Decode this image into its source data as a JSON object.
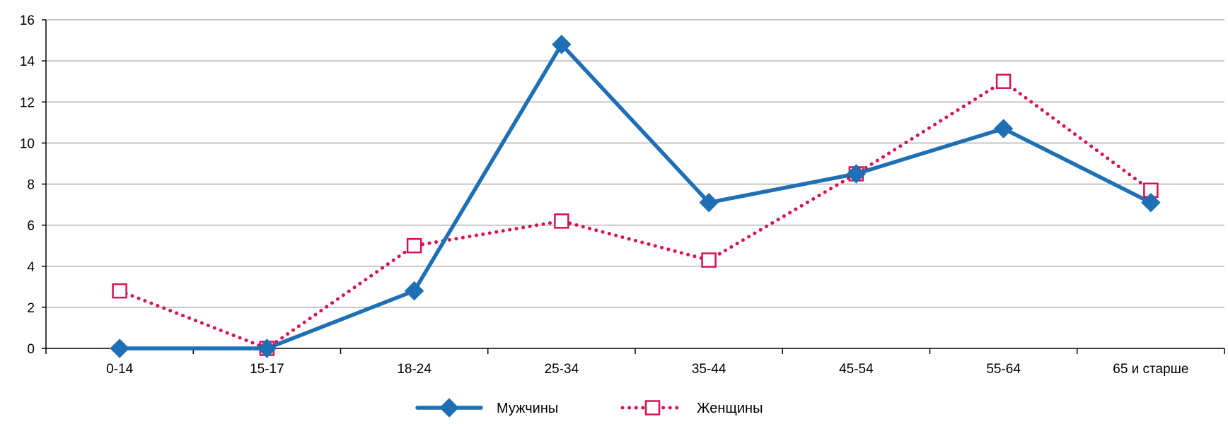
{
  "chart_data": {
    "type": "line",
    "categories": [
      "0-14",
      "15-17",
      "18-24",
      "25-34",
      "35-44",
      "45-54",
      "55-64",
      "65 и старше"
    ],
    "ylim": [
      0,
      16
    ],
    "yticks": [
      0,
      2,
      4,
      6,
      8,
      10,
      12,
      14,
      16
    ],
    "grid": true,
    "legend_position": "bottom",
    "series": [
      {
        "name": "Мужчины",
        "values": [
          0,
          0,
          2.8,
          14.8,
          7.1,
          8.5,
          10.7,
          7.1
        ],
        "color": "#1f6fb4",
        "line_style": "solid",
        "marker": "diamond-filled"
      },
      {
        "name": "Женщины",
        "values": [
          2.8,
          0,
          5.0,
          6.2,
          4.3,
          8.5,
          13.0,
          7.7
        ],
        "color": "#d8114f",
        "line_style": "dotted",
        "marker": "square-open"
      }
    ]
  }
}
